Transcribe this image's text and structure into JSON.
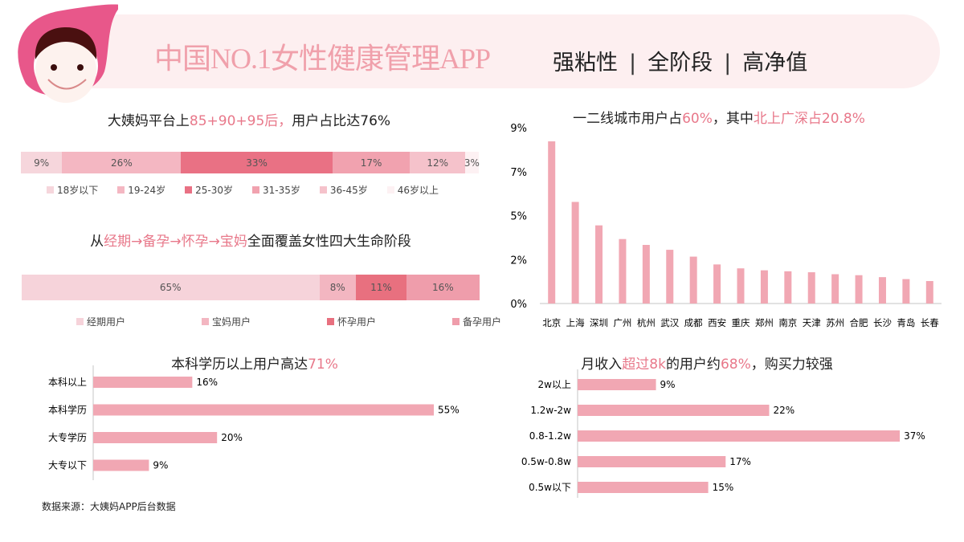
{
  "header": {
    "title": "中国NO.1女性健康管理APP",
    "tags": [
      "强粘性",
      "全阶段",
      "高净值"
    ],
    "separator": "|",
    "logo": "smiling-girl-face-logo"
  },
  "colors": {
    "accent": "#e8788a",
    "bar": "#f1a7b3",
    "banner": "#fdeff0"
  },
  "chart_data": [
    {
      "type": "bar",
      "orientation": "stacked-horizontal",
      "title_parts": [
        {
          "text": "大姨妈平台上",
          "hl": false
        },
        {
          "text": "85+90+95后，",
          "hl": true
        },
        {
          "text": "用户占比达76%",
          "hl": false
        }
      ],
      "series": [
        {
          "name": "18岁以下",
          "value": 9,
          "label": "9%",
          "color": "#f6d6dc"
        },
        {
          "name": "19-24岁",
          "value": 26,
          "label": "26%",
          "color": "#f4b7c2"
        },
        {
          "name": "25-30岁",
          "value": 33,
          "label": "33%",
          "color": "#e97184"
        },
        {
          "name": "31-35岁",
          "value": 17,
          "label": "17%",
          "color": "#f1a2af"
        },
        {
          "name": "36-45岁",
          "value": 12,
          "label": "12%",
          "color": "#f5c2cb"
        },
        {
          "name": "46岁以上",
          "value": 3,
          "label": "3%",
          "color": "#fdf1f3"
        }
      ],
      "legend": "bottom"
    },
    {
      "type": "bar",
      "orientation": "stacked-horizontal",
      "title_parts": [
        {
          "text": "从",
          "hl": false
        },
        {
          "text": "经期→备孕→怀孕→宝妈",
          "hl": true
        },
        {
          "text": "全面覆盖女性四大生命阶段",
          "hl": false
        }
      ],
      "series": [
        {
          "name": "经期用户",
          "value": 65,
          "label": "65%",
          "color": "#f6d3da"
        },
        {
          "name": "宝妈用户",
          "value": 8,
          "label": "8%",
          "color": "#f3b6c1"
        },
        {
          "name": "怀孕用户",
          "value": 11,
          "label": "11%",
          "color": "#e8707f"
        },
        {
          "name": "备孕用户",
          "value": 16,
          "label": "16%",
          "color": "#ef9dab"
        }
      ],
      "legend": "bottom"
    },
    {
      "type": "bar",
      "title_parts": [
        {
          "text": "一二线城市用户占",
          "hl": false
        },
        {
          "text": "60%",
          "hl": true
        },
        {
          "text": "，其中",
          "hl": false
        },
        {
          "text": "北上广深占20.8%",
          "hl": true
        }
      ],
      "categories": [
        "北京",
        "上海",
        "深圳",
        "广州",
        "杭州",
        "武汉",
        "成都",
        "西安",
        "重庆",
        "郑州",
        "南京",
        "天津",
        "苏州",
        "合肥",
        "长沙",
        "青岛",
        "长春"
      ],
      "values": [
        8.3,
        5.2,
        4.0,
        3.3,
        3.0,
        2.75,
        2.4,
        2.0,
        1.8,
        1.7,
        1.65,
        1.6,
        1.5,
        1.45,
        1.35,
        1.25,
        1.15
      ],
      "ylim": [
        0,
        9
      ],
      "yticks": [
        {
          "value": 0,
          "label": "0%"
        },
        {
          "value": 2.25,
          "label": "2%"
        },
        {
          "value": 4.5,
          "label": "5%"
        },
        {
          "value": 6.75,
          "label": "7%"
        },
        {
          "value": 9,
          "label": "9%"
        }
      ],
      "grid": false
    },
    {
      "type": "bar",
      "orientation": "horizontal",
      "title_parts": [
        {
          "text": "本科学历以上用户高达",
          "hl": false
        },
        {
          "text": "71%",
          "hl": true
        }
      ],
      "categories": [
        "本科以上",
        "本科学历",
        "大专学历",
        "大专以下"
      ],
      "values": [
        16,
        55,
        20,
        9
      ],
      "labels": [
        "16%",
        "55%",
        "20%",
        "9%"
      ]
    },
    {
      "type": "bar",
      "orientation": "horizontal",
      "title_parts": [
        {
          "text": "月收入",
          "hl": false
        },
        {
          "text": "超过8k",
          "hl": true
        },
        {
          "text": "的用户约",
          "hl": false
        },
        {
          "text": "68%",
          "hl": true
        },
        {
          "text": "，购买力较强",
          "hl": false
        }
      ],
      "categories": [
        "2w以上",
        "1.2w-2w",
        "0.8-1.2w",
        "0.5w-0.8w",
        "0.5w以下"
      ],
      "values": [
        9,
        22,
        37,
        17,
        15
      ],
      "labels": [
        "9%",
        "22%",
        "37%",
        "17%",
        "15%"
      ]
    }
  ],
  "source": "数据来源：大姨妈APP后台数据"
}
